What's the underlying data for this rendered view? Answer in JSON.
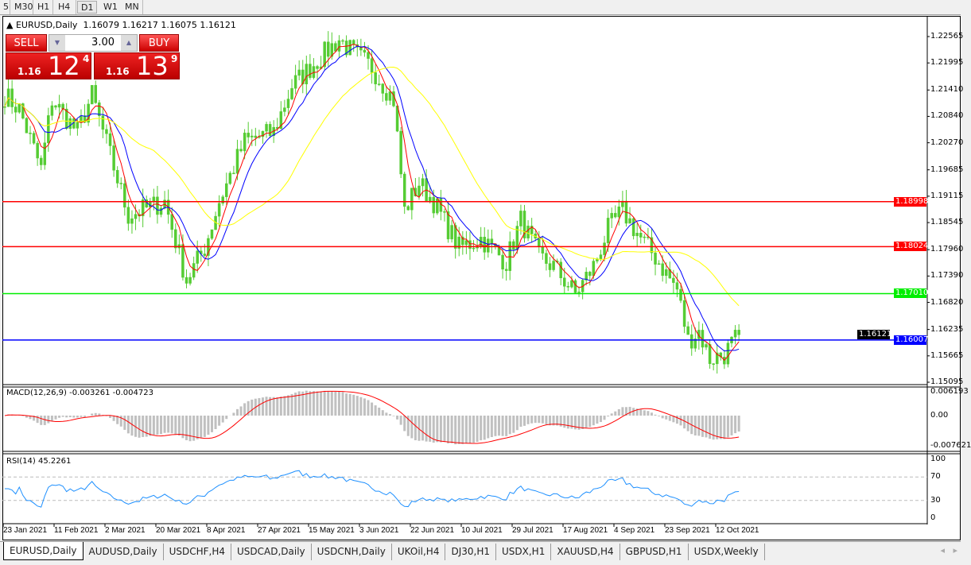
{
  "toolbar": {
    "timeframes": [
      "5",
      "M30",
      "H1",
      "H4",
      "D1",
      "W1",
      "MN"
    ],
    "active": "D1"
  },
  "chart": {
    "title": "EURUSD,Daily",
    "ohlc": "1.16079 1.16217 1.16075 1.16121",
    "sell_label": "SELL",
    "buy_label": "BUY",
    "lot": "3.00",
    "sell_big": "1.16",
    "sell_main": "12",
    "sell_sup": "4",
    "buy_big": "1.16",
    "buy_main": "13",
    "buy_sup": "9",
    "price_ticks": [
      "1.22565",
      "1.21995",
      "1.21410",
      "1.20840",
      "1.20270",
      "1.19685",
      "1.19115",
      "1.18545",
      "1.17960",
      "1.17390",
      "1.16820",
      "1.16235",
      "1.15665",
      "1.15095"
    ],
    "price_range": [
      1.15095,
      1.22565
    ],
    "hlines": [
      {
        "price": 1.18998,
        "label": "1.18998",
        "color": "#ff0000"
      },
      {
        "price": 1.18024,
        "label": "1.18024",
        "color": "#ff0000"
      },
      {
        "price": 1.1701,
        "label": "1.17010",
        "color": "#00ee00"
      },
      {
        "price": 1.16007,
        "label": "1.16007",
        "color": "#0000ff"
      }
    ],
    "current_price": "1.16121",
    "price_path": [
      [
        0,
        1.213
      ],
      [
        4,
        1.21
      ],
      [
        10,
        1.197
      ],
      [
        13,
        1.212
      ],
      [
        20,
        1.205
      ],
      [
        24,
        1.213
      ],
      [
        29,
        1.2
      ],
      [
        34,
        1.187
      ],
      [
        44,
        1.19
      ],
      [
        50,
        1.173
      ],
      [
        55,
        1.18
      ],
      [
        59,
        1.19
      ],
      [
        66,
        1.203
      ],
      [
        74,
        1.205
      ],
      [
        79,
        1.215
      ],
      [
        88,
        1.222
      ],
      [
        92,
        1.225
      ],
      [
        96,
        1.222
      ],
      [
        101,
        1.219
      ],
      [
        107,
        1.212
      ],
      [
        110,
        1.188
      ],
      [
        114,
        1.194
      ],
      [
        118,
        1.19
      ],
      [
        125,
        1.18
      ],
      [
        131,
        1.182
      ],
      [
        138,
        1.177
      ],
      [
        142,
        1.186
      ],
      [
        147,
        1.178
      ],
      [
        151,
        1.176
      ],
      [
        157,
        1.17
      ],
      [
        162,
        1.176
      ],
      [
        166,
        1.184
      ],
      [
        170,
        1.188
      ],
      [
        175,
        1.182
      ],
      [
        179,
        1.178
      ],
      [
        185,
        1.171
      ],
      [
        188,
        1.16
      ],
      [
        191,
        1.162
      ],
      [
        194,
        1.156
      ],
      [
        198,
        1.157
      ],
      [
        202,
        1.1612
      ]
    ],
    "ma_colors": {
      "fast": "#ff0000",
      "mid": "#0000ff",
      "slow": "#ffff00"
    },
    "dates": [
      "23 Jan 2021",
      "11 Feb 2021",
      "2 Mar 2021",
      "20 Mar 2021",
      "8 Apr 2021",
      "27 Apr 2021",
      "15 May 2021",
      "3 Jun 2021",
      "22 Jun 2021",
      "10 Jul 2021",
      "29 Jul 2021",
      "17 Aug 2021",
      "4 Sep 2021",
      "23 Sep 2021",
      "12 Oct 2021"
    ]
  },
  "macd": {
    "label": "MACD(12,26,9) -0.003261 -0.004723",
    "ticks": [
      "0.006193",
      "0.00",
      "-0.007621"
    ]
  },
  "rsi": {
    "label": "RSI(14) 45.2261",
    "ticks": [
      "100",
      "70",
      "30",
      "0"
    ],
    "value": 45.2261
  },
  "tabs": [
    "EURUSD,Daily",
    "AUDUSD,Daily",
    "USDCHF,H4",
    "USDCAD,Daily",
    "USDCNH,Daily",
    "UKOil,H4",
    "DJ30,H1",
    "USDX,H1",
    "XAUUSD,H4",
    "GBPUSD,H1",
    "USDX,Weekly"
  ]
}
